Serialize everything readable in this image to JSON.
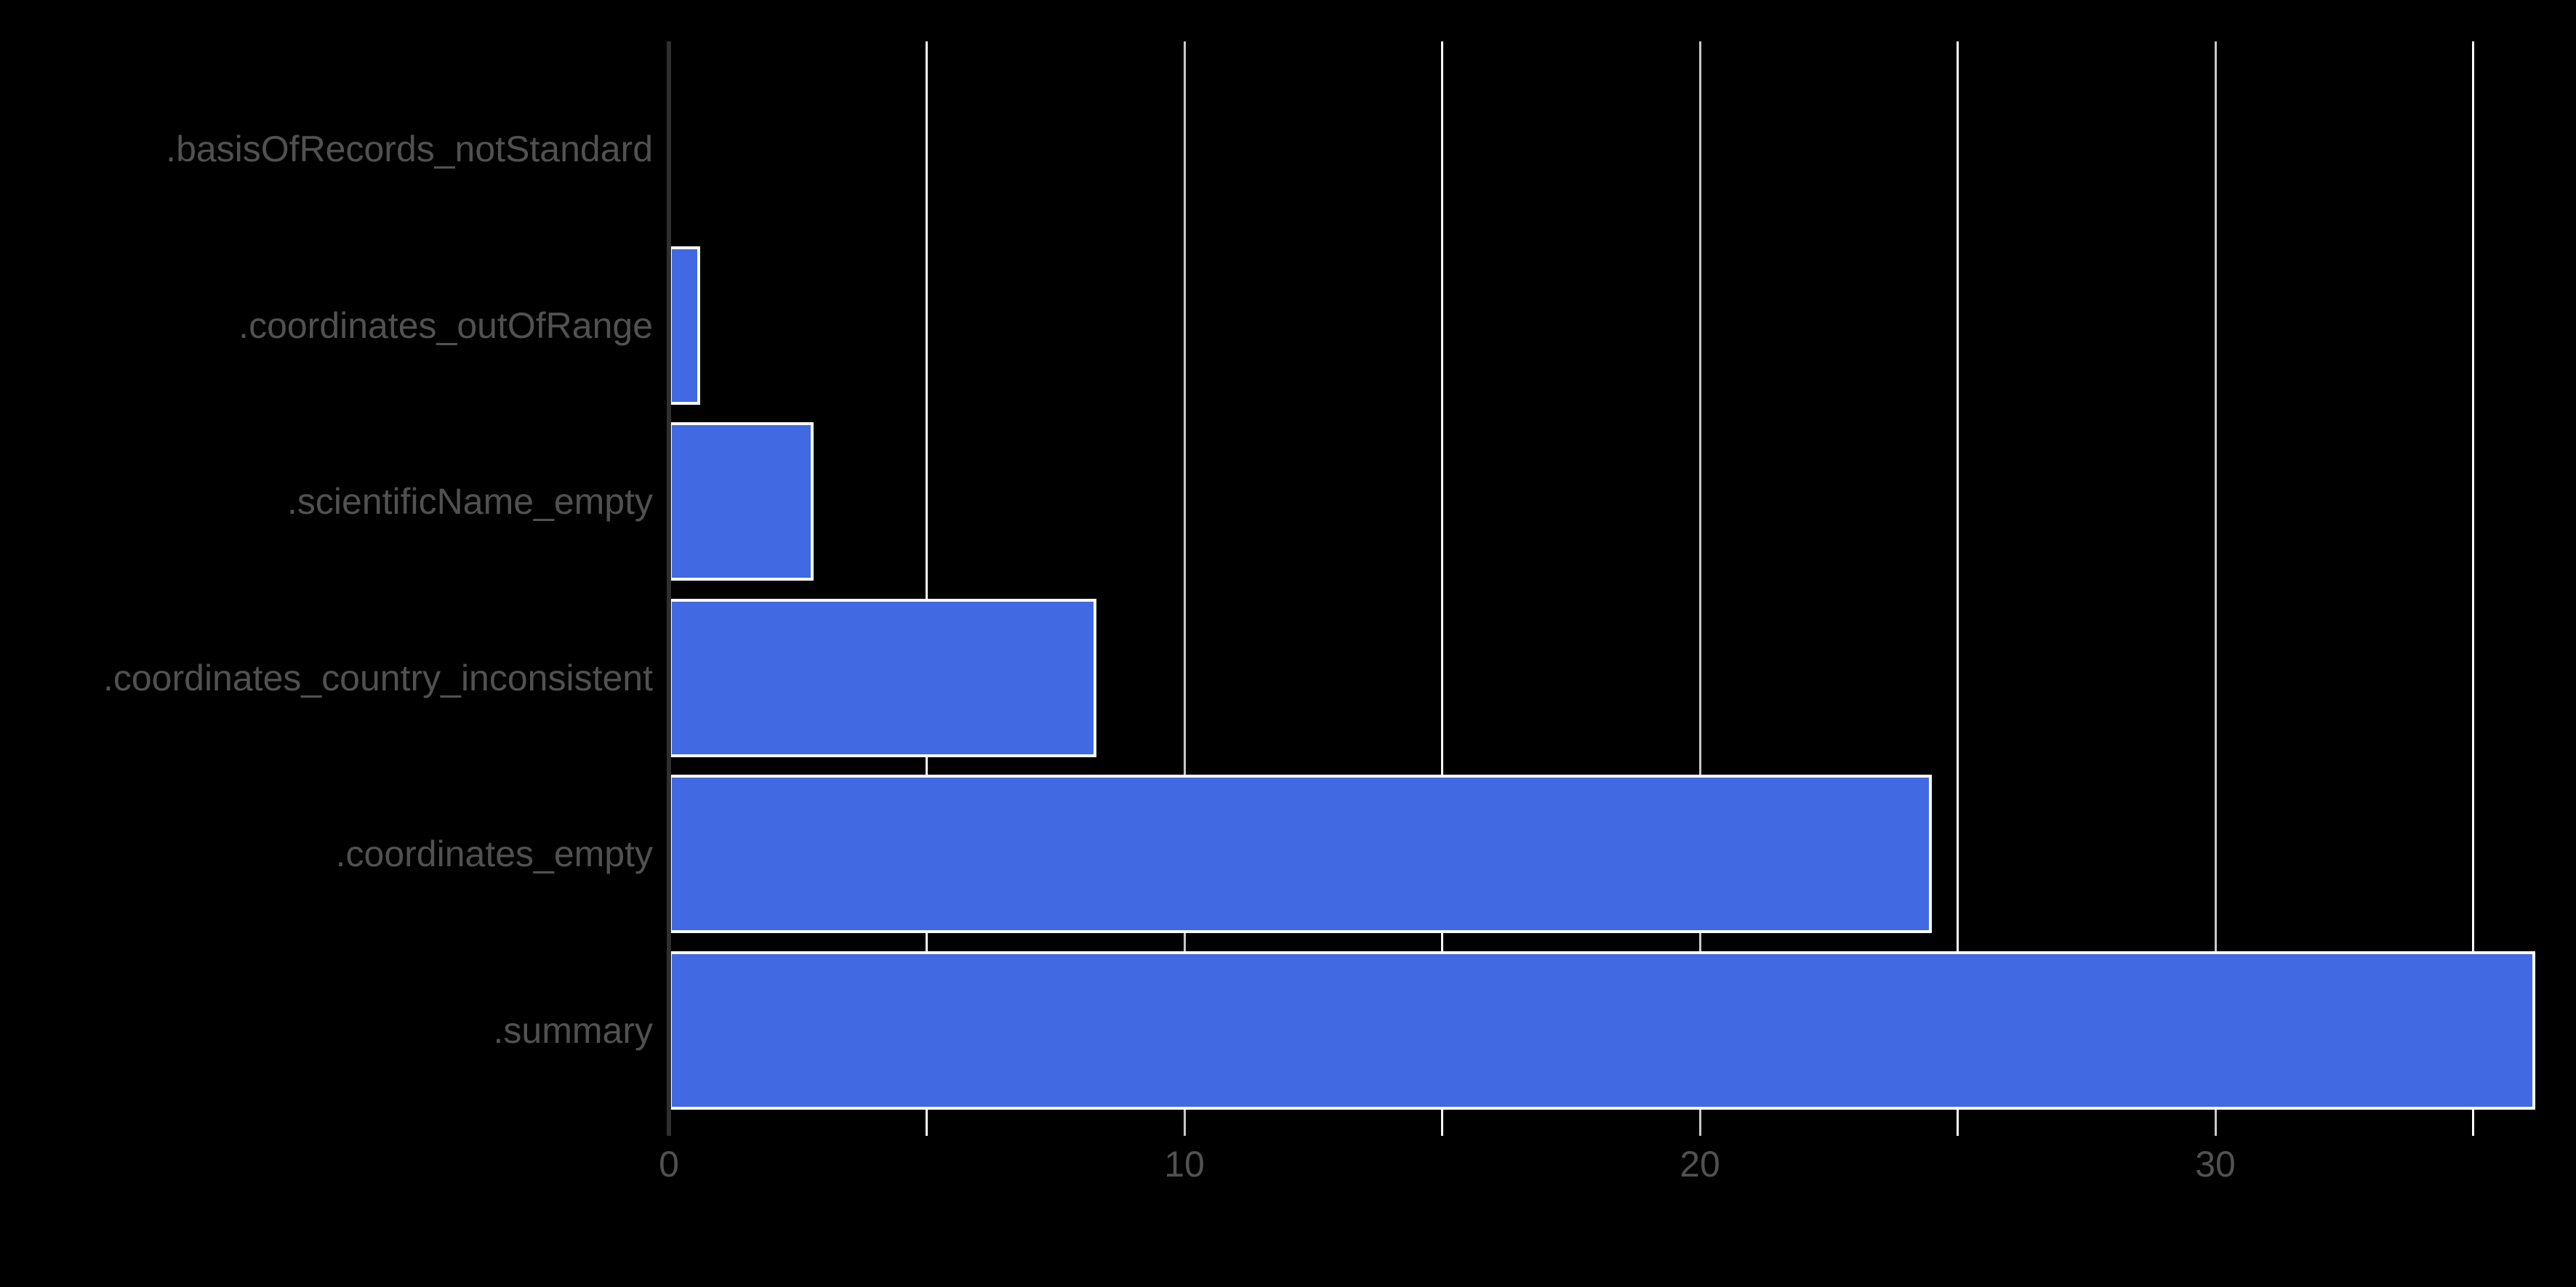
{
  "chart_data": {
    "type": "bar",
    "orientation": "horizontal",
    "title": "",
    "xlabel": "",
    "ylabel": "",
    "categories": [
      ".basisOfRecords_notStandard",
      ".coordinates_outOfRange",
      ".scientificName_empty",
      ".coordinates_country_inconsistent",
      ".coordinates_empty",
      ".summary"
    ],
    "values": [
      0,
      0.6,
      2.8,
      8.3,
      24.5,
      36.2
    ],
    "x_ticks": [
      0,
      10,
      20,
      30
    ],
    "x_minor_gridlines": [
      5,
      15,
      25,
      35
    ],
    "xlim": [
      0,
      37
    ],
    "grid": "vertical",
    "legend": "none",
    "colors": {
      "background": "#000000",
      "bar_fill": "#4169E1",
      "bar_border": "#FFFFFF",
      "axis_line": "#2F2F2F",
      "grid_major": "#C8C8C8",
      "grid_minor": "#FFFFFF",
      "label_text": "#515151",
      "tick_text": "#515151"
    }
  }
}
